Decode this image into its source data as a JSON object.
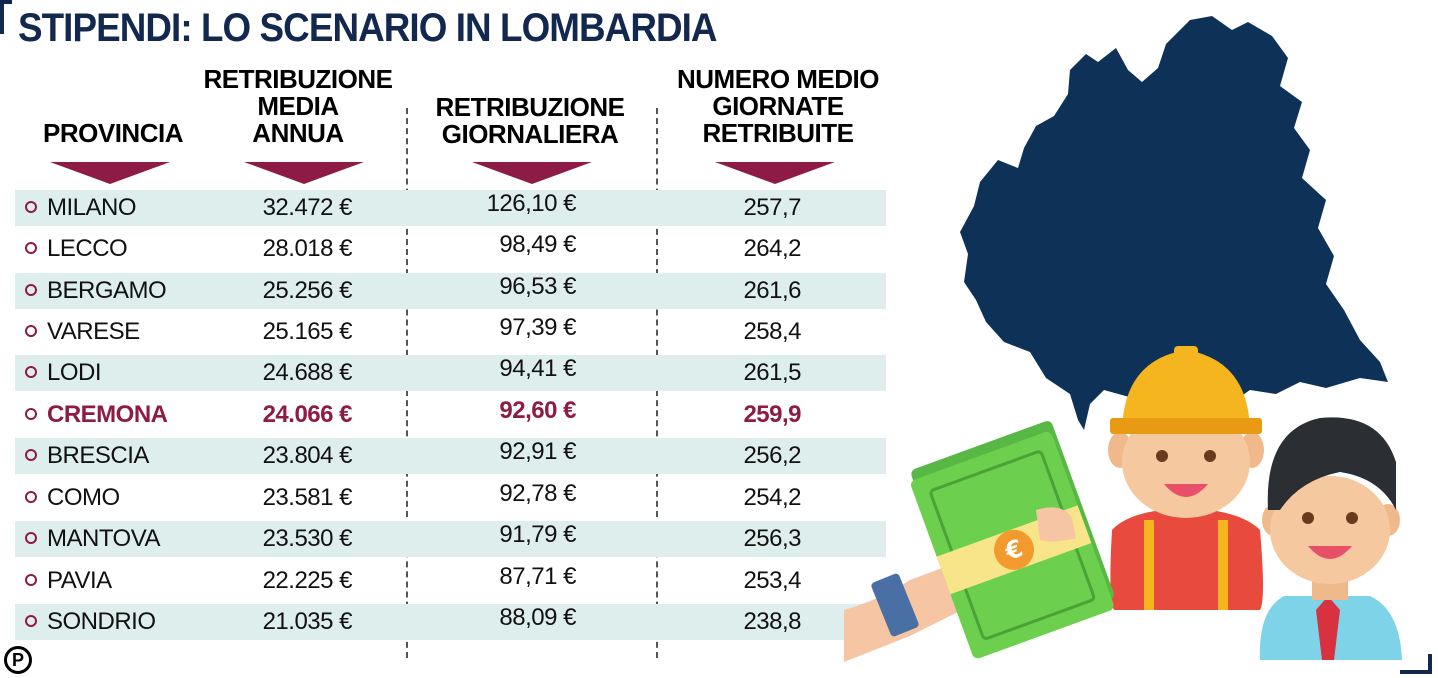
{
  "title": "STIPENDI: LO SCENARIO IN LOMBARDIA",
  "headers": {
    "provincia": "PROVINCIA",
    "retribuzione_media_annua": [
      "RETRIBUZIONE",
      "MEDIA",
      "ANNUA"
    ],
    "retribuzione_giornaliera": [
      "RETRIBUZIONE",
      "GIORNALIERA"
    ],
    "numero_medio_giornate": [
      "NUMERO MEDIO",
      "GIORNATE",
      "RETRIBUITE"
    ]
  },
  "rows": [
    {
      "provincia": "MILANO",
      "annua": "32.472 €",
      "giornaliera": "126,10 €",
      "giornate": "257,7"
    },
    {
      "provincia": "LECCO",
      "annua": "28.018 €",
      "giornaliera": "98,49 €",
      "giornate": "264,2"
    },
    {
      "provincia": "BERGAMO",
      "annua": "25.256 €",
      "giornaliera": "96,53 €",
      "giornate": "261,6"
    },
    {
      "provincia": "VARESE",
      "annua": "25.165 €",
      "giornaliera": "97,39 €",
      "giornate": "258,4"
    },
    {
      "provincia": "LODI",
      "annua": "24.688 €",
      "giornaliera": "94,41 €",
      "giornate": "261,5"
    },
    {
      "provincia": "CREMONA",
      "annua": "24.066 €",
      "giornaliera": "92,60 €",
      "giornate": "259,9"
    },
    {
      "provincia": "BRESCIA",
      "annua": "23.804 €",
      "giornaliera": "92,91 €",
      "giornate": "256,2"
    },
    {
      "provincia": "COMO",
      "annua": "23.581 €",
      "giornaliera": "92,78 €",
      "giornate": "254,2"
    },
    {
      "provincia": "MANTOVA",
      "annua": "23.530 €",
      "giornaliera": "91,79 €",
      "giornate": "256,3"
    },
    {
      "provincia": "PAVIA",
      "annua": "22.225 €",
      "giornaliera": "87,71 €",
      "giornate": "253,4"
    },
    {
      "provincia": "SONDRIO",
      "annua": "21.035 €",
      "giornaliera": "88,09 €",
      "giornate": "238,8"
    }
  ],
  "highlight_row": "CREMONA",
  "logo_letter": "P",
  "colors": {
    "title": "#13284f",
    "accent": "#8e1b46",
    "row_shade": "#deeeec",
    "map": "#0e3257"
  },
  "icons": [
    "lombardia-map-icon",
    "worker-hardhat-icon",
    "businessman-icon",
    "hand-money-euro-icon"
  ]
}
